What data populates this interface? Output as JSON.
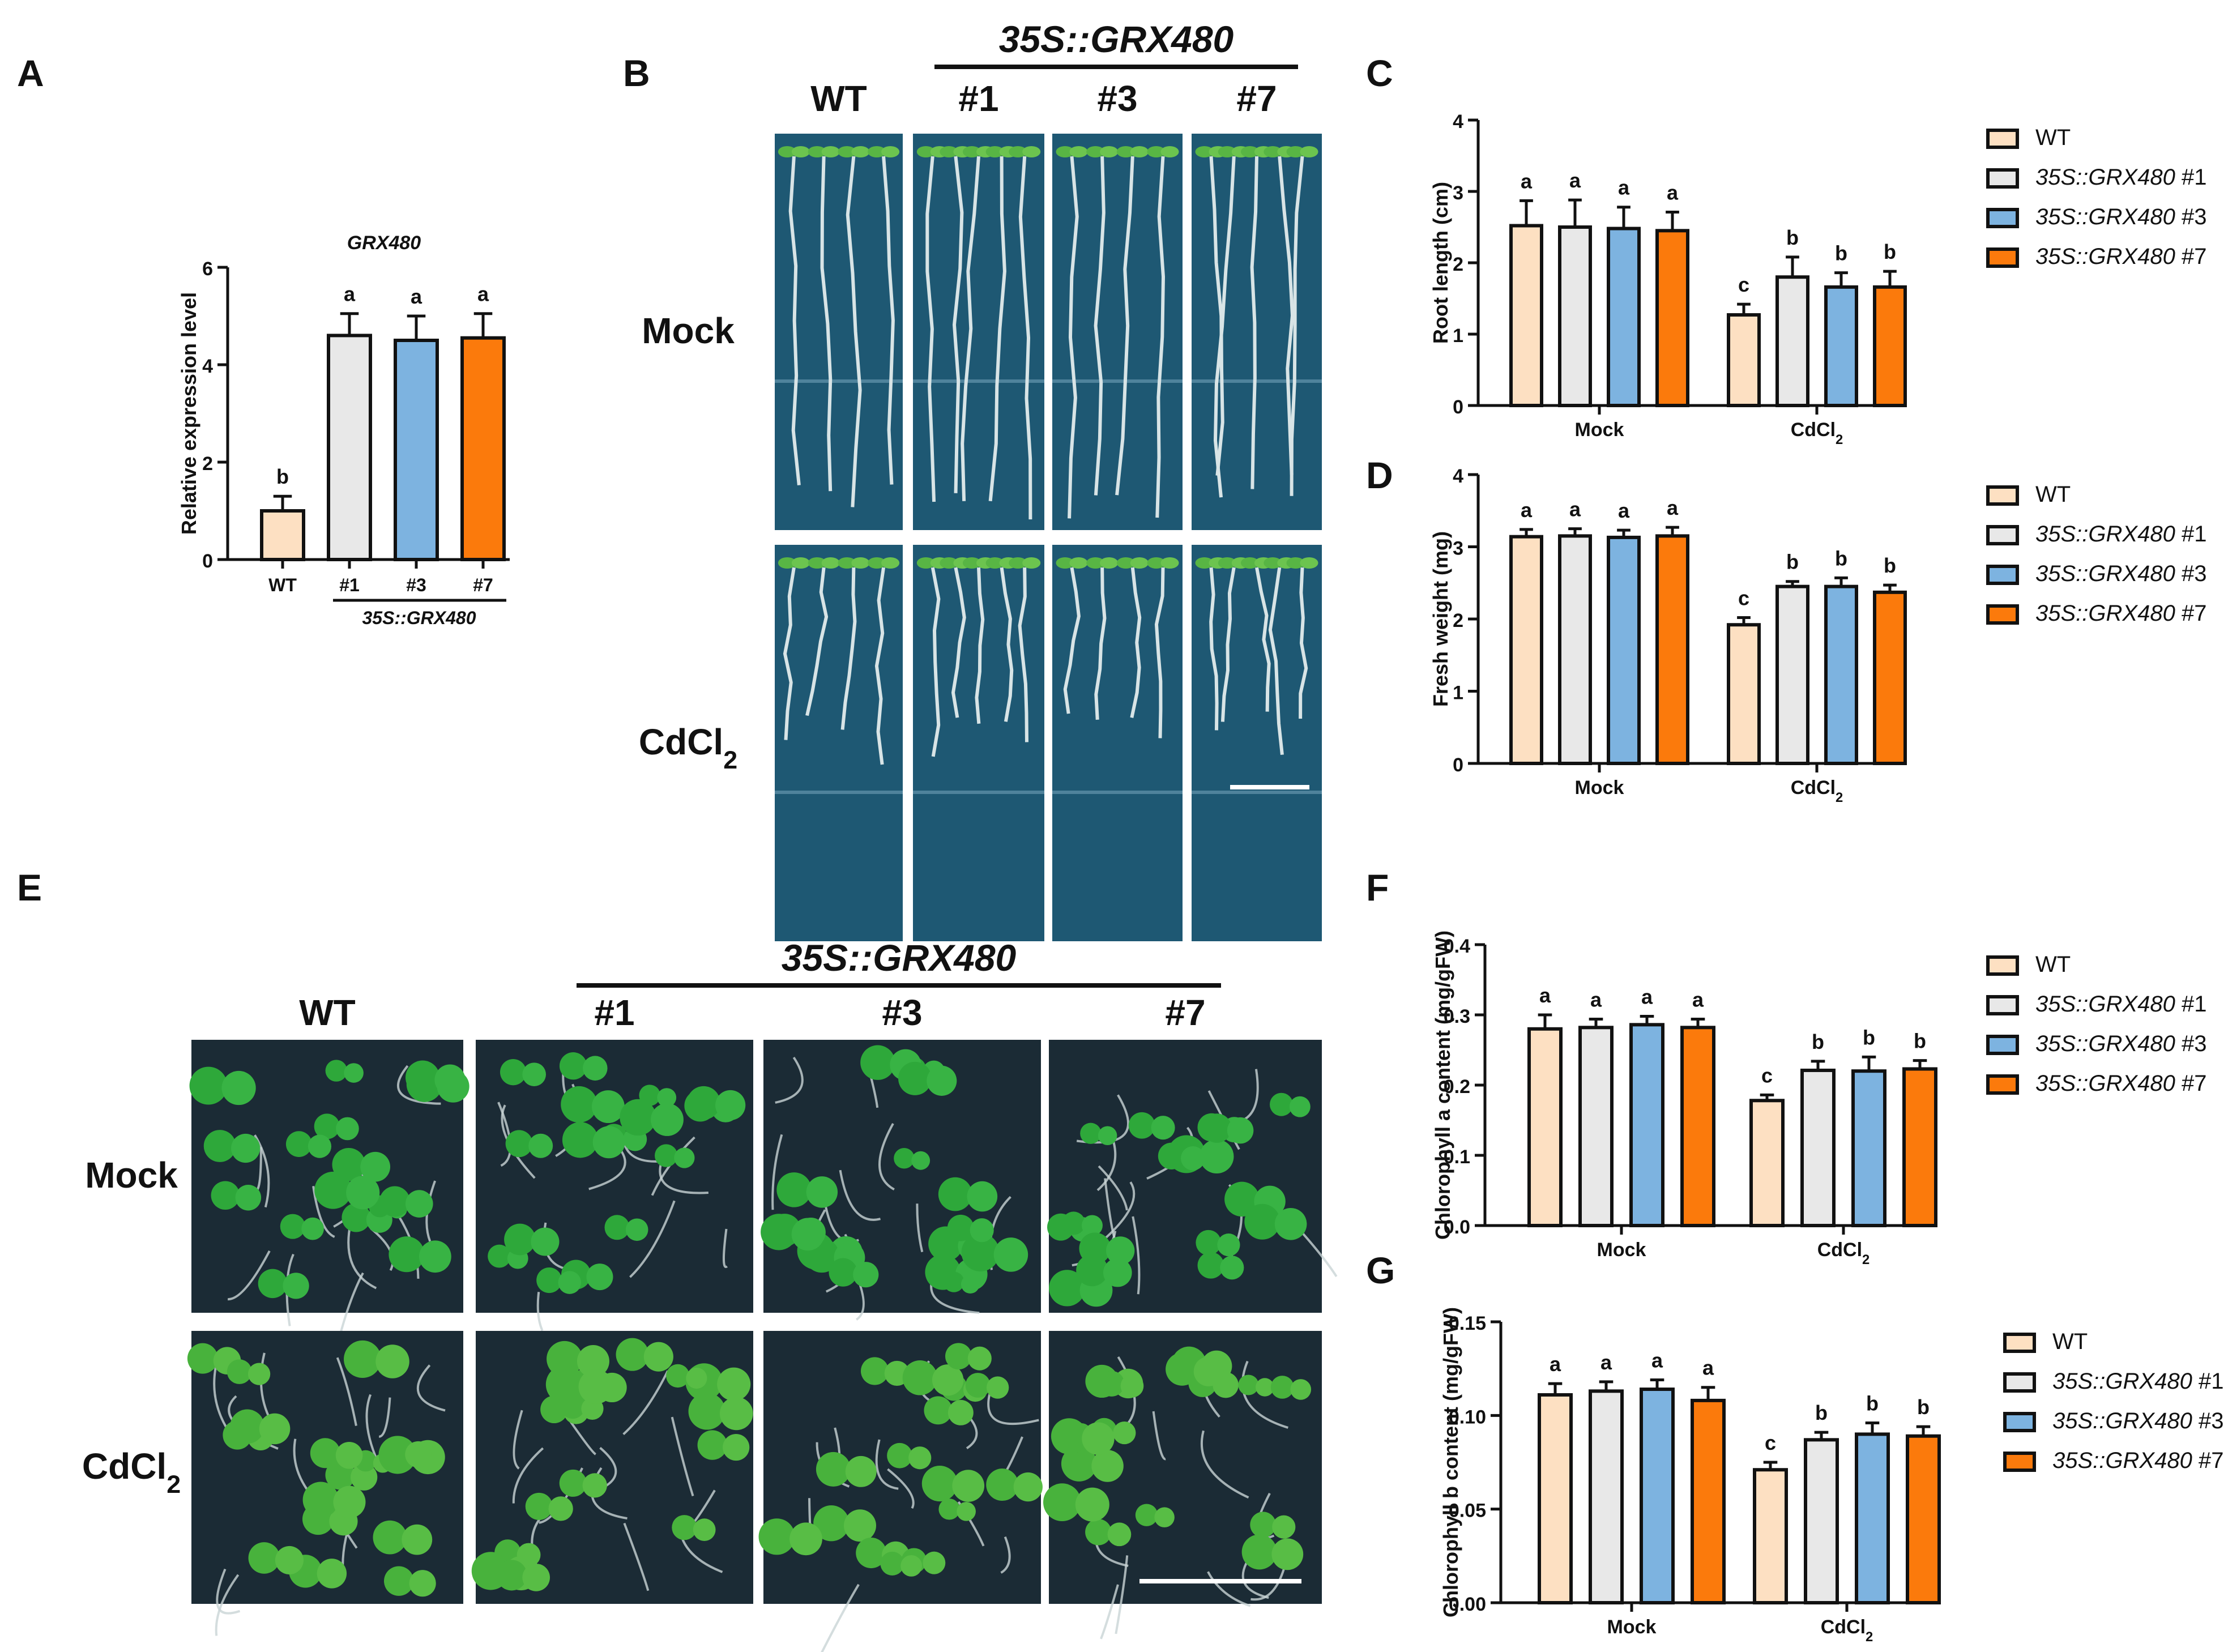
{
  "panels": {
    "A": {
      "letter": "A",
      "title": "GRX480",
      "ylabel": "Relative expression level",
      "group_label": "35S::GRX480",
      "chart_data": {
        "type": "bar",
        "categories": [
          "WT",
          "#1",
          "#3",
          "#7"
        ],
        "values": [
          1.0,
          4.6,
          4.5,
          4.55
        ],
        "errors": [
          0.3,
          0.45,
          0.5,
          0.5
        ],
        "letters": [
          "b",
          "a",
          "a",
          "a"
        ],
        "colors": [
          "#fde0c2",
          "#e8e8e8",
          "#7db3e0",
          "#fb7a0c"
        ],
        "ylim": [
          0,
          6
        ],
        "yticks": [
          "0",
          "2",
          "4",
          "6"
        ]
      }
    },
    "B": {
      "letter": "B",
      "group_label": "35S::GRX480",
      "columns": [
        "WT",
        "#1",
        "#3",
        "#7"
      ],
      "rows": [
        "Mock",
        "CdCl2"
      ]
    },
    "C": {
      "letter": "C",
      "ylabel": "Root length (cm)",
      "chart_data": {
        "type": "bar",
        "groups": [
          "Mock",
          "CdCl2"
        ],
        "series": [
          {
            "name": "WT",
            "values": [
              2.52,
              1.27
            ],
            "errors": [
              0.35,
              0.15
            ],
            "letters": [
              "a",
              "c"
            ]
          },
          {
            "name": "35S::GRX480 #1",
            "values": [
              2.5,
              1.8
            ],
            "errors": [
              0.38,
              0.28
            ],
            "letters": [
              "a",
              "b"
            ]
          },
          {
            "name": "35S::GRX480 #3",
            "values": [
              2.48,
              1.66
            ],
            "errors": [
              0.3,
              0.2
            ],
            "letters": [
              "a",
              "b"
            ]
          },
          {
            "name": "35S::GRX480 #7",
            "values": [
              2.45,
              1.66
            ],
            "errors": [
              0.26,
              0.22
            ],
            "letters": [
              "a",
              "b"
            ]
          }
        ],
        "ylim": [
          0,
          4
        ],
        "yticks": [
          "0",
          "1",
          "2",
          "3",
          "4"
        ]
      }
    },
    "D": {
      "letter": "D",
      "ylabel": "Fresh weight (mg)",
      "chart_data": {
        "type": "bar",
        "groups": [
          "Mock",
          "CdCl2"
        ],
        "series": [
          {
            "name": "WT",
            "values": [
              3.14,
              1.92
            ],
            "errors": [
              0.1,
              0.1
            ],
            "letters": [
              "a",
              "c"
            ]
          },
          {
            "name": "35S::GRX480 #1",
            "values": [
              3.15,
              2.45
            ],
            "errors": [
              0.1,
              0.07
            ],
            "letters": [
              "a",
              "b"
            ]
          },
          {
            "name": "35S::GRX480 #3",
            "values": [
              3.13,
              2.45
            ],
            "errors": [
              0.1,
              0.12
            ],
            "letters": [
              "a",
              "b"
            ]
          },
          {
            "name": "35S::GRX480 #7",
            "values": [
              3.15,
              2.37
            ],
            "errors": [
              0.12,
              0.1
            ],
            "letters": [
              "a",
              "b"
            ]
          }
        ],
        "ylim": [
          0,
          4
        ],
        "yticks": [
          "0",
          "1",
          "2",
          "3",
          "4"
        ]
      }
    },
    "E": {
      "letter": "E",
      "group_label": "35S::GRX480",
      "columns": [
        "WT",
        "#1",
        "#3",
        "#7"
      ],
      "rows": [
        "Mock",
        "CdCl2"
      ]
    },
    "F": {
      "letter": "F",
      "ylabel": "Chlorophyll a content (mg/gFW)",
      "chart_data": {
        "type": "bar",
        "groups": [
          "Mock",
          "CdCl2"
        ],
        "series": [
          {
            "name": "WT",
            "values": [
              0.28,
              0.178
            ],
            "errors": [
              0.02,
              0.008
            ],
            "letters": [
              "a",
              "c"
            ]
          },
          {
            "name": "35S::GRX480 #1",
            "values": [
              0.282,
              0.221
            ],
            "errors": [
              0.012,
              0.013
            ],
            "letters": [
              "a",
              "b"
            ]
          },
          {
            "name": "35S::GRX480 #3",
            "values": [
              0.286,
              0.22
            ],
            "errors": [
              0.012,
              0.02
            ],
            "letters": [
              "a",
              "b"
            ]
          },
          {
            "name": "35S::GRX480 #7",
            "values": [
              0.282,
              0.223
            ],
            "errors": [
              0.012,
              0.012
            ],
            "letters": [
              "a",
              "b"
            ]
          }
        ],
        "ylim": [
          0,
          0.4
        ],
        "yticks": [
          "0.0",
          "0.1",
          "0.2",
          "0.3",
          "0.4"
        ]
      }
    },
    "G": {
      "letter": "G",
      "ylabel": "Chlorophyll b content (mg/gFW)",
      "chart_data": {
        "type": "bar",
        "groups": [
          "Mock",
          "CdCl2"
        ],
        "series": [
          {
            "name": "WT",
            "values": [
              0.111,
              0.071
            ],
            "errors": [
              0.006,
              0.004
            ],
            "letters": [
              "a",
              "c"
            ]
          },
          {
            "name": "35S::GRX480 #1",
            "values": [
              0.113,
              0.087
            ],
            "errors": [
              0.005,
              0.004
            ],
            "letters": [
              "a",
              "b"
            ]
          },
          {
            "name": "35S::GRX480 #3",
            "values": [
              0.114,
              0.09
            ],
            "errors": [
              0.005,
              0.006
            ],
            "letters": [
              "a",
              "b"
            ]
          },
          {
            "name": "35S::GRX480 #7",
            "values": [
              0.108,
              0.089
            ],
            "errors": [
              0.007,
              0.005
            ],
            "letters": [
              "a",
              "b"
            ]
          }
        ],
        "ylim": [
          0,
          0.15
        ],
        "yticks": [
          "0.00",
          "0.05",
          "0.10",
          "0.15"
        ]
      }
    }
  },
  "colors": {
    "WT": "#fde0c2",
    "line1": "#e8e8e8",
    "line3": "#7db3e0",
    "line7": "#fb7a0c",
    "outline": "#111111"
  }
}
